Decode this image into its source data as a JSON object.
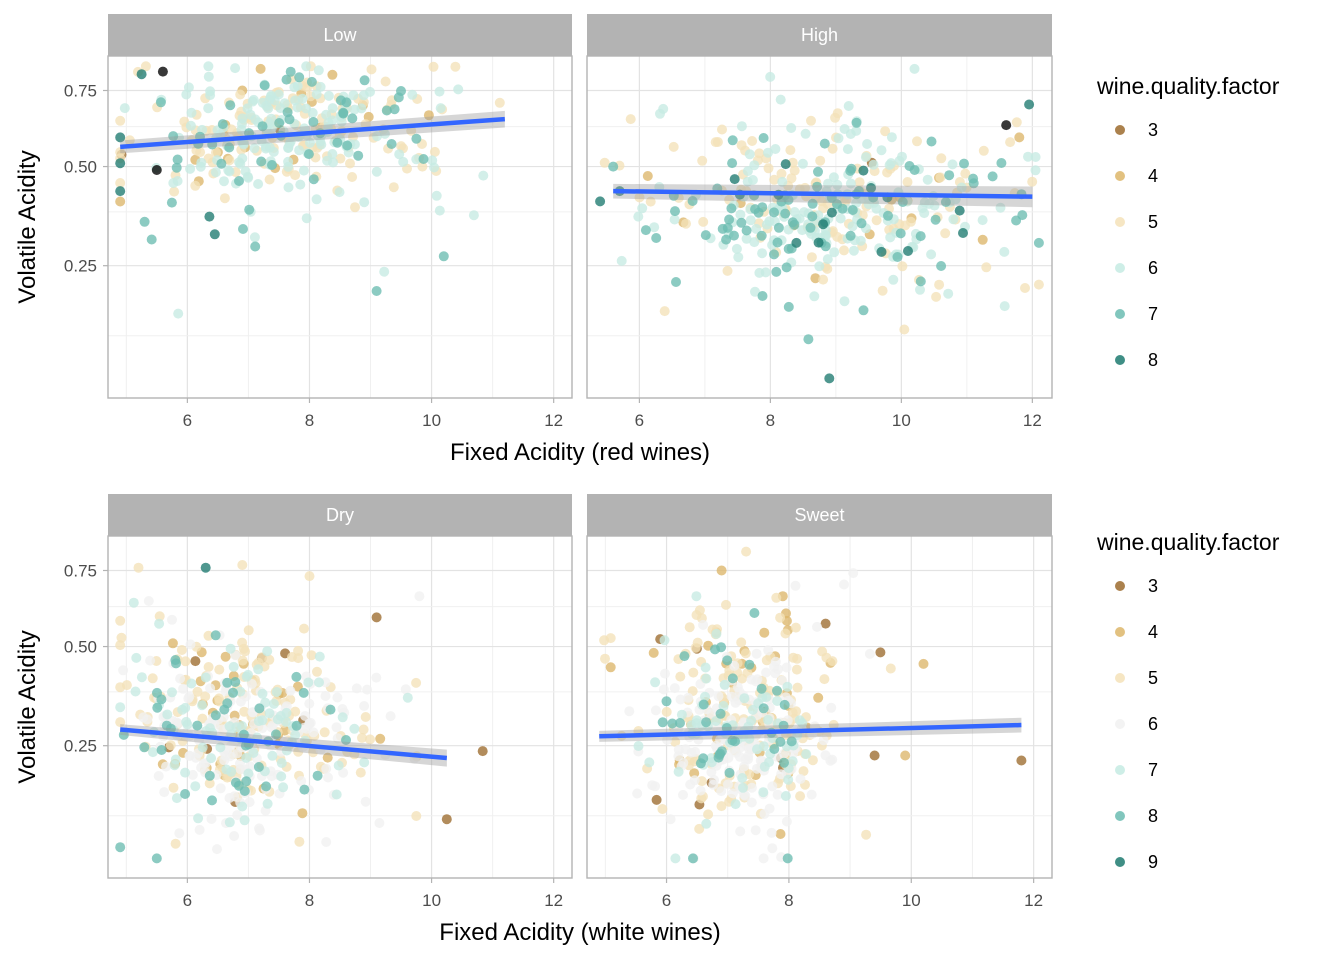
{
  "chart_data": [
    {
      "type": "scatter",
      "ylabel": "Volatile Acidity",
      "xlabel": "Fixed Acidity (red wines)",
      "y_scale": "sqrt",
      "ylim": [
        0.05,
        0.88
      ],
      "y_ticks": [
        "0.25",
        "0.50",
        "0.75"
      ],
      "x_ticks": [
        "6",
        "8",
        "10",
        "12"
      ],
      "legend": {
        "title": "wine.quality.factor",
        "placement": "right",
        "entries": [
          {
            "label": "3",
            "color": "#9c6b2e"
          },
          {
            "label": "4",
            "color": "#ddb66a"
          },
          {
            "label": "5",
            "color": "#f4e2b8"
          },
          {
            "label": "6",
            "color": "#c6ebe3"
          },
          {
            "label": "7",
            "color": "#6bbcb1"
          },
          {
            "label": "8",
            "color": "#1d7a70"
          }
        ]
      },
      "panels": [
        {
          "strip": "Low",
          "xlim": [
            4.7,
            12.3
          ],
          "fit": {
            "x": [
              4.9,
              11.2
            ],
            "y": [
              0.56,
              0.65
            ],
            "se": 0.02
          },
          "clusters": [
            {
              "cx": 7.6,
              "cy": 0.62,
              "sx": 0.9,
              "sy": 0.09,
              "n": 260,
              "dist": [
                0.01,
                0.05,
                0.42,
                0.42,
                0.09,
                0.01
              ]
            },
            {
              "cx": 6.2,
              "cy": 0.55,
              "sx": 0.8,
              "sy": 0.13,
              "n": 60,
              "dist": [
                0.02,
                0.08,
                0.4,
                0.35,
                0.13,
                0.02
              ]
            },
            {
              "cx": 9.4,
              "cy": 0.58,
              "sx": 1.0,
              "sy": 0.13,
              "n": 50,
              "dist": [
                0.01,
                0.06,
                0.45,
                0.35,
                0.12,
                0.01
              ]
            }
          ],
          "points": [
            {
              "x": 5.25,
              "y": 0.81,
              "q": 5
            },
            {
              "x": 5.6,
              "y": 0.82,
              "q": 6
            },
            {
              "x": 5.5,
              "y": 0.49,
              "q": 6
            },
            {
              "x": 7.2,
              "y": 0.83,
              "q": 1
            },
            {
              "x": 5.85,
              "y": 0.16,
              "q": 3
            },
            {
              "x": 9.1,
              "y": 0.2,
              "q": 4
            },
            {
              "x": 10.2,
              "y": 0.27,
              "q": 4
            },
            {
              "x": 6.45,
              "y": 0.32,
              "q": 5
            },
            {
              "x": 4.9,
              "y": 0.43,
              "q": 5
            },
            {
              "x": 5.3,
              "y": 0.35,
              "q": 4
            },
            {
              "x": 9.85,
              "y": 0.5,
              "q": 2
            },
            {
              "x": 4.9,
              "y": 0.51,
              "q": 5
            },
            {
              "x": 4.9,
              "y": 0.59,
              "q": 5
            },
            {
              "x": 6.9,
              "y": 0.75,
              "q": 1
            }
          ]
        },
        {
          "strip": "High",
          "xlim": [
            5.2,
            12.3
          ],
          "fit": {
            "x": [
              5.6,
              12.0
            ],
            "y": [
              0.43,
              0.415
            ],
            "se": 0.02
          },
          "clusters": [
            {
              "cx": 9.2,
              "cy": 0.4,
              "sx": 1.3,
              "sy": 0.12,
              "n": 250,
              "dist": [
                0.01,
                0.03,
                0.4,
                0.38,
                0.15,
                0.03
              ]
            },
            {
              "cx": 9.0,
              "cy": 0.34,
              "sx": 1.1,
              "sy": 0.06,
              "n": 120,
              "dist": [
                0.0,
                0.02,
                0.12,
                0.4,
                0.38,
                0.08
              ]
            },
            {
              "cx": 7.3,
              "cy": 0.45,
              "sx": 1.0,
              "sy": 0.12,
              "n": 40,
              "dist": [
                0.0,
                0.05,
                0.45,
                0.4,
                0.1,
                0.0
              ]
            }
          ],
          "points": [
            {
              "x": 8.9,
              "y": 0.07,
              "q": 5
            },
            {
              "x": 5.6,
              "y": 0.5,
              "q": 4
            },
            {
              "x": 5.7,
              "y": 0.43,
              "q": 5
            },
            {
              "x": 6.1,
              "y": 0.33,
              "q": 4
            },
            {
              "x": 10.2,
              "y": 0.83,
              "q": 3
            },
            {
              "x": 11.8,
              "y": 0.59,
              "q": 1
            },
            {
              "x": 11.6,
              "y": 0.63,
              "q": 6
            },
            {
              "x": 11.95,
              "y": 0.7,
              "q": 5
            }
          ]
        }
      ]
    },
    {
      "type": "scatter",
      "ylabel": "Volatile Acidity",
      "xlabel": "Fixed Acidity (white wines)",
      "y_scale": "sqrt",
      "ylim": [
        0.05,
        0.88
      ],
      "y_ticks": [
        "0.25",
        "0.50",
        "0.75"
      ],
      "x_ticks": [
        "6",
        "8",
        "10",
        "12"
      ],
      "legend": {
        "title": "wine.quality.factor",
        "placement": "right",
        "entries": [
          {
            "label": "3",
            "color": "#9c6b2e"
          },
          {
            "label": "4",
            "color": "#ddb66a"
          },
          {
            "label": "5",
            "color": "#f4e2b8"
          },
          {
            "label": "6",
            "color": "#f1f1f1"
          },
          {
            "label": "7",
            "color": "#c6ebe3"
          },
          {
            "label": "8",
            "color": "#6bbcb1"
          },
          {
            "label": "9",
            "color": "#1d7a70"
          }
        ]
      },
      "panels": [
        {
          "strip": "Dry",
          "xlim": [
            4.7,
            12.3
          ],
          "fit": {
            "x": [
              4.9,
              10.25
            ],
            "y": [
              0.285,
              0.225
            ],
            "se": 0.012
          },
          "clusters": [
            {
              "cx": 6.8,
              "cy": 0.26,
              "sx": 0.8,
              "sy": 0.07,
              "n": 320,
              "dist": [
                0.01,
                0.05,
                0.28,
                0.38,
                0.2,
                0.08,
                0.0
              ]
            },
            {
              "cx": 6.6,
              "cy": 0.42,
              "sx": 0.9,
              "sy": 0.1,
              "n": 100,
              "dist": [
                0.02,
                0.12,
                0.45,
                0.2,
                0.15,
                0.06,
                0.0
              ]
            },
            {
              "cx": 8.3,
              "cy": 0.3,
              "sx": 0.9,
              "sy": 0.1,
              "n": 60,
              "dist": [
                0.02,
                0.1,
                0.4,
                0.3,
                0.15,
                0.03,
                0.0
              ]
            }
          ],
          "points": [
            {
              "x": 5.2,
              "y": 0.76,
              "q": 2
            },
            {
              "x": 6.9,
              "y": 0.77,
              "q": 2
            },
            {
              "x": 6.3,
              "y": 0.76,
              "q": 6
            },
            {
              "x": 9.1,
              "y": 0.59,
              "q": 0
            },
            {
              "x": 7.6,
              "y": 0.48,
              "q": 0
            },
            {
              "x": 10.25,
              "y": 0.12,
              "q": 0
            },
            {
              "x": 8.0,
              "y": 0.73,
              "q": 2
            },
            {
              "x": 5.5,
              "y": 0.07,
              "q": 5
            },
            {
              "x": 9.8,
              "y": 0.66,
              "q": 3
            }
          ]
        },
        {
          "strip": "Sweet",
          "xlim": [
            4.7,
            12.3
          ],
          "fit": {
            "x": [
              4.9,
              11.8
            ],
            "y": [
              0.27,
              0.295
            ],
            "se": 0.012
          },
          "clusters": [
            {
              "cx": 7.2,
              "cy": 0.26,
              "sx": 0.7,
              "sy": 0.08,
              "n": 380,
              "dist": [
                0.01,
                0.04,
                0.32,
                0.4,
                0.16,
                0.07,
                0.0
              ]
            },
            {
              "cx": 7.2,
              "cy": 0.44,
              "sx": 0.8,
              "sy": 0.1,
              "n": 110,
              "dist": [
                0.02,
                0.15,
                0.48,
                0.18,
                0.12,
                0.05,
                0.0
              ]
            }
          ],
          "points": [
            {
              "x": 7.3,
              "y": 0.82,
              "q": 2
            },
            {
              "x": 7.9,
              "y": 0.66,
              "q": 1
            },
            {
              "x": 6.9,
              "y": 0.75,
              "q": 1
            },
            {
              "x": 10.2,
              "y": 0.45,
              "q": 1
            },
            {
              "x": 11.8,
              "y": 0.22,
              "q": 0
            },
            {
              "x": 9.4,
              "y": 0.23,
              "q": 0
            },
            {
              "x": 8.6,
              "y": 0.57,
              "q": 0
            },
            {
              "x": 9.9,
              "y": 0.23,
              "q": 1
            },
            {
              "x": 8.9,
              "y": 0.7,
              "q": 3
            }
          ]
        }
      ]
    }
  ]
}
